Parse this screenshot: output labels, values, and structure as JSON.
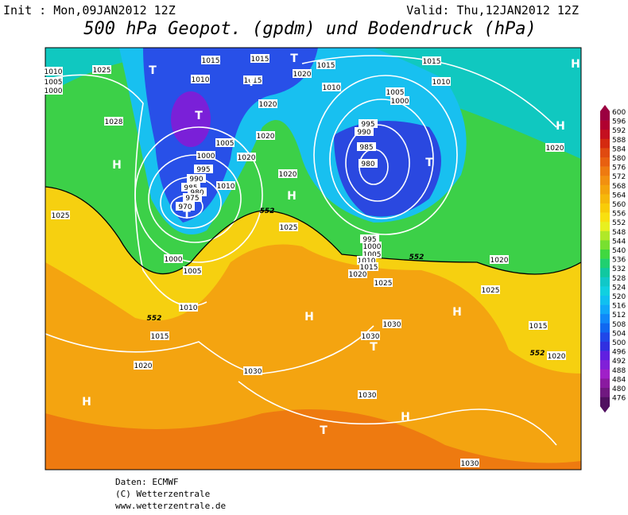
{
  "header": {
    "init": "Init : Mon,09JAN2012 12Z",
    "valid": "Valid: Thu,12JAN2012 12Z",
    "title": "500 hPa Geopot. (gpdm) und Bodendruck (hPa)"
  },
  "map": {
    "isobar_labels": [
      "1025",
      "1010",
      "1005",
      "1000",
      "1015",
      "1015",
      "1020",
      "1015",
      "1015",
      "1010",
      "1010",
      "1005",
      "1000",
      "1010",
      "1015",
      "1020",
      "1028",
      "1020",
      "1005",
      "1020",
      "1000",
      "995",
      "990",
      "985",
      "980",
      "975",
      "970",
      "1010",
      "1020",
      "995",
      "990",
      "985",
      "980",
      "1025",
      "1025",
      "1000",
      "1005",
      "995",
      "1000",
      "1005",
      "1010",
      "1015",
      "1020",
      "1025",
      "1020",
      "1020",
      "1025",
      "1010",
      "1015",
      "1030",
      "1030",
      "1015",
      "1020",
      "1020",
      "1030",
      "1030",
      "1030"
    ],
    "contour_labels": [
      "552",
      "552",
      "552",
      "552"
    ],
    "pressure_centers": [
      "H",
      "T",
      "T",
      "T",
      "T",
      "H",
      "H",
      "T",
      "H",
      "T",
      "H",
      "T",
      "H",
      "H",
      "H",
      "T"
    ]
  },
  "legend": {
    "levels": [
      600,
      596,
      592,
      588,
      584,
      580,
      576,
      572,
      568,
      564,
      560,
      556,
      552,
      548,
      544,
      540,
      536,
      532,
      528,
      524,
      520,
      516,
      512,
      508,
      504,
      500,
      496,
      492,
      488,
      484,
      480,
      476
    ],
    "colors": [
      "#9b0040",
      "#b00030",
      "#c41020",
      "#d42a10",
      "#e04a10",
      "#e86010",
      "#ee7a10",
      "#f29010",
      "#f4a40c",
      "#f6b80a",
      "#f8cc08",
      "#f8e010",
      "#e8f020",
      "#b0e828",
      "#78e030",
      "#40d840",
      "#20d070",
      "#10c8a0",
      "#10c8c8",
      "#10d0e0",
      "#10c0f0",
      "#10a8f8",
      "#1088f8",
      "#1068f0",
      "#2048e8",
      "#3030e0",
      "#6020e0",
      "#8020d8",
      "#a020c8",
      "#8a1aa0",
      "#701880",
      "#501060"
    ]
  },
  "footer": {
    "source": "Daten: ECMWF",
    "copyright": "(C) Wetterzentrale",
    "url": "www.wetterzentrale.de"
  }
}
